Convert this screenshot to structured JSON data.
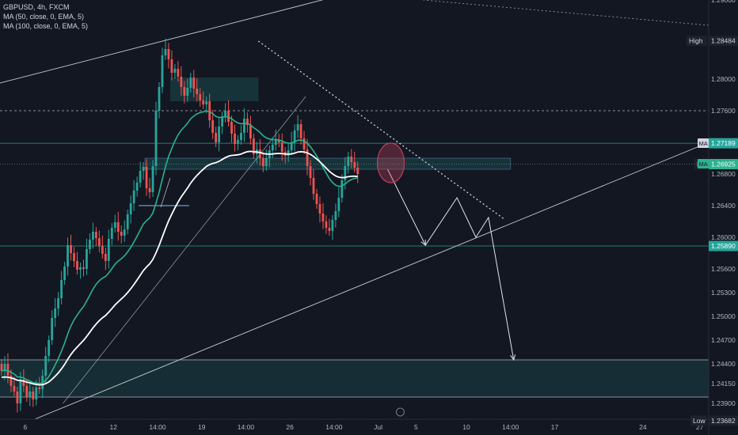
{
  "legend": {
    "symbol_line": "GBPUSD, 4h, FXCM",
    "ma1": "MA (50, close, 0, EMA, 5)",
    "ma2": "MA (100, close, 0, EMA, 5)"
  },
  "colors": {
    "background": "#131722",
    "bull": "#26a69a",
    "bear": "#ef5350",
    "ma50": "#2bb38d",
    "ma100": "#ffffff",
    "zone": "#1b4a4e",
    "circle": "#c2405c"
  },
  "chart_data": {
    "type": "candlestick",
    "symbol": "GBPUSD",
    "timeframe": "4h",
    "y_axis": {
      "min": 1.235,
      "max": 1.29,
      "ticks": [
        "1.29000",
        "1.28000",
        "1.27600",
        "1.27200",
        "1.26800",
        "1.26400",
        "1.26000",
        "1.25600",
        "1.25300",
        "1.25000",
        "1.24700",
        "1.24400",
        "1.24150",
        "1.23900"
      ],
      "tick_values": [
        1.29,
        1.28,
        1.276,
        1.272,
        1.268,
        1.264,
        1.26,
        1.256,
        1.253,
        1.25,
        1.247,
        1.244,
        1.2415,
        1.239
      ]
    },
    "x_axis": {
      "labels": [
        "6",
        "12",
        "14:00",
        "19",
        "14:00",
        "26",
        "14:00",
        "Jul",
        "5",
        "10",
        "14:00",
        "17",
        "24",
        "27"
      ],
      "bar_index": [
        8,
        36,
        50,
        64,
        78,
        92,
        106,
        120,
        132,
        148,
        162,
        176,
        204,
        222
      ]
    },
    "price_labels": [
      {
        "text": "High",
        "value": "1.28484",
        "price": 1.28484
      },
      {
        "text": "",
        "value": "1.27189",
        "price": 1.27189,
        "color": "#26a69a"
      },
      {
        "text": "MA",
        "value": "1.26925",
        "price": 1.26925,
        "color": "#2bb38d"
      },
      {
        "text": "",
        "value": "1.25890",
        "price": 1.2589,
        "color": "#26a69a"
      },
      {
        "text": "Low",
        "value": "1.23682",
        "price": 1.23682
      }
    ],
    "ma_tags": [
      "MA",
      "MA"
    ],
    "ohlc_closes": [
      1.2431,
      1.244,
      1.2425,
      1.2412,
      1.2405,
      1.239,
      1.242,
      1.2412,
      1.2398,
      1.2405,
      1.2395,
      1.241,
      1.2408,
      1.2425,
      1.245,
      1.247,
      1.2498,
      1.251,
      1.2523,
      1.2546,
      1.2563,
      1.259,
      1.258,
      1.257,
      1.2559,
      1.2562,
      1.256,
      1.2585,
      1.2597,
      1.2607,
      1.2599,
      1.2589,
      1.2579,
      1.257,
      1.2598,
      1.2612,
      1.2619,
      1.2607,
      1.2602,
      1.261,
      1.2629,
      1.2643,
      1.2659,
      1.2669,
      1.2684,
      1.2689,
      1.2662,
      1.2657,
      1.269,
      1.276,
      1.279,
      1.283,
      1.2838,
      1.2825,
      1.2808,
      1.2813,
      1.2803,
      1.279,
      1.2779,
      1.2789,
      1.2802,
      1.2788,
      1.2781,
      1.2773,
      1.2768,
      1.2772,
      1.2748,
      1.2732,
      1.272,
      1.274,
      1.2753,
      1.276,
      1.2746,
      1.2731,
      1.2718,
      1.2723,
      1.2732,
      1.275,
      1.2742,
      1.2725,
      1.2705,
      1.2711,
      1.27,
      1.269,
      1.27,
      1.271,
      1.2717,
      1.2723,
      1.272,
      1.2708,
      1.2703,
      1.271,
      1.272,
      1.2735,
      1.2743,
      1.2725,
      1.2711,
      1.269,
      1.2675,
      1.2655,
      1.2642,
      1.263,
      1.262,
      1.2612,
      1.2608,
      1.2622,
      1.2633,
      1.265,
      1.2672,
      1.269,
      1.2702,
      1.2695,
      1.2688,
      1.268
    ]
  },
  "annotations": {
    "zones": [
      {
        "price_top": 1.2445,
        "price_bottom": 1.2398
      },
      {
        "price_top": 1.2802,
        "price_bottom": 1.2772
      },
      {
        "price_top": 1.27,
        "price_bottom": 1.2686
      }
    ],
    "levels": [
      1.276,
      1.27189,
      1.2589,
      1.2445,
      1.2398
    ],
    "projection": [
      {
        "bar": 123,
        "price": 1.2686
      },
      {
        "bar": 135,
        "price": 1.259
      },
      {
        "bar": 145,
        "price": 1.265
      },
      {
        "bar": 151,
        "price": 1.26
      },
      {
        "bar": 155,
        "price": 1.2625
      },
      {
        "bar": 163,
        "price": 1.2445
      }
    ]
  }
}
